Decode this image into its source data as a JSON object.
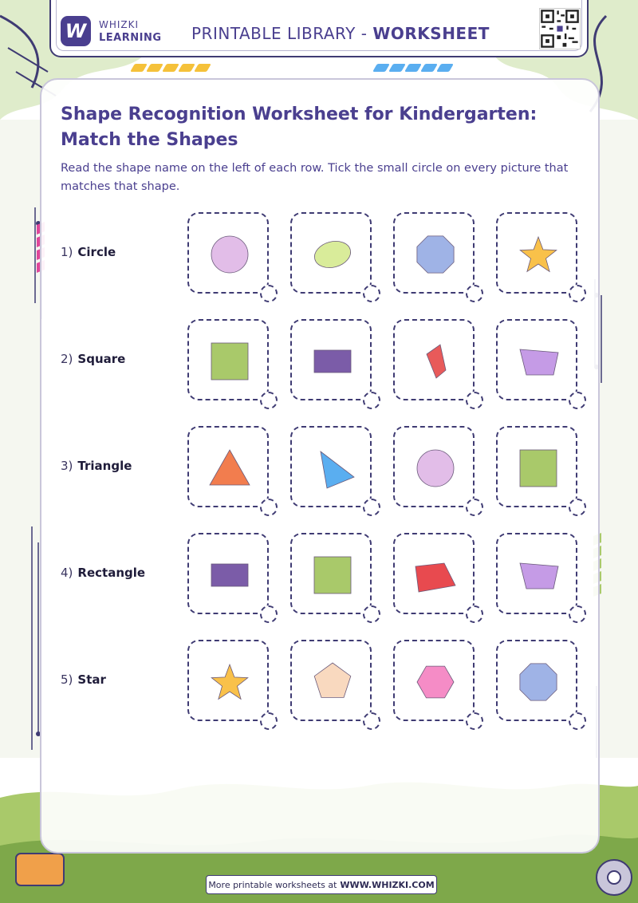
{
  "brand": {
    "line1": "WHIZKI",
    "line2": "LEARNING",
    "logo_letter": "W"
  },
  "header": {
    "prefix": "PRINTABLE LIBRARY - ",
    "emphasis": "WORKSHEET"
  },
  "title": "Shape Recognition Worksheet for Kindergarten: Match the Shapes",
  "instructions": "Read the shape name on the left of each row. Tick the small circle on every picture that matches that shape.",
  "rows": [
    {
      "number": "1)",
      "name": "Circle",
      "pictures": [
        {
          "shape": "circle",
          "color": "#e2bde8"
        },
        {
          "shape": "oval",
          "color": "#d9ec9a"
        },
        {
          "shape": "octagon",
          "color": "#9fb3e6"
        },
        {
          "shape": "star",
          "color": "#f9c14a"
        }
      ]
    },
    {
      "number": "2)",
      "name": "Square",
      "pictures": [
        {
          "shape": "square",
          "color": "#a9c96a"
        },
        {
          "shape": "rectangle",
          "color": "#7b5ca8"
        },
        {
          "shape": "kite",
          "color": "#e85a5a"
        },
        {
          "shape": "trapezoid",
          "color": "#c59be6"
        }
      ]
    },
    {
      "number": "3)",
      "name": "Triangle",
      "pictures": [
        {
          "shape": "triangle",
          "color": "#f27d4e"
        },
        {
          "shape": "triangle-tilted",
          "color": "#5aaef0"
        },
        {
          "shape": "circle",
          "color": "#e2bde8"
        },
        {
          "shape": "square",
          "color": "#a9c96a"
        }
      ]
    },
    {
      "number": "4)",
      "name": "Rectangle",
      "pictures": [
        {
          "shape": "rectangle",
          "color": "#7b5ca8"
        },
        {
          "shape": "square",
          "color": "#a9c96a"
        },
        {
          "shape": "quad-red",
          "color": "#e84a4f"
        },
        {
          "shape": "trapezoid",
          "color": "#c59be6"
        }
      ]
    },
    {
      "number": "5)",
      "name": "Star",
      "pictures": [
        {
          "shape": "star",
          "color": "#f9c14a"
        },
        {
          "shape": "pentagon",
          "color": "#f9d9bf"
        },
        {
          "shape": "hexagon",
          "color": "#f58cc6"
        },
        {
          "shape": "octagon",
          "color": "#9fb3e6"
        }
      ]
    }
  ],
  "footer": {
    "prefix": "More printable worksheets at",
    "site": "WWW.WHIZKI.COM"
  }
}
